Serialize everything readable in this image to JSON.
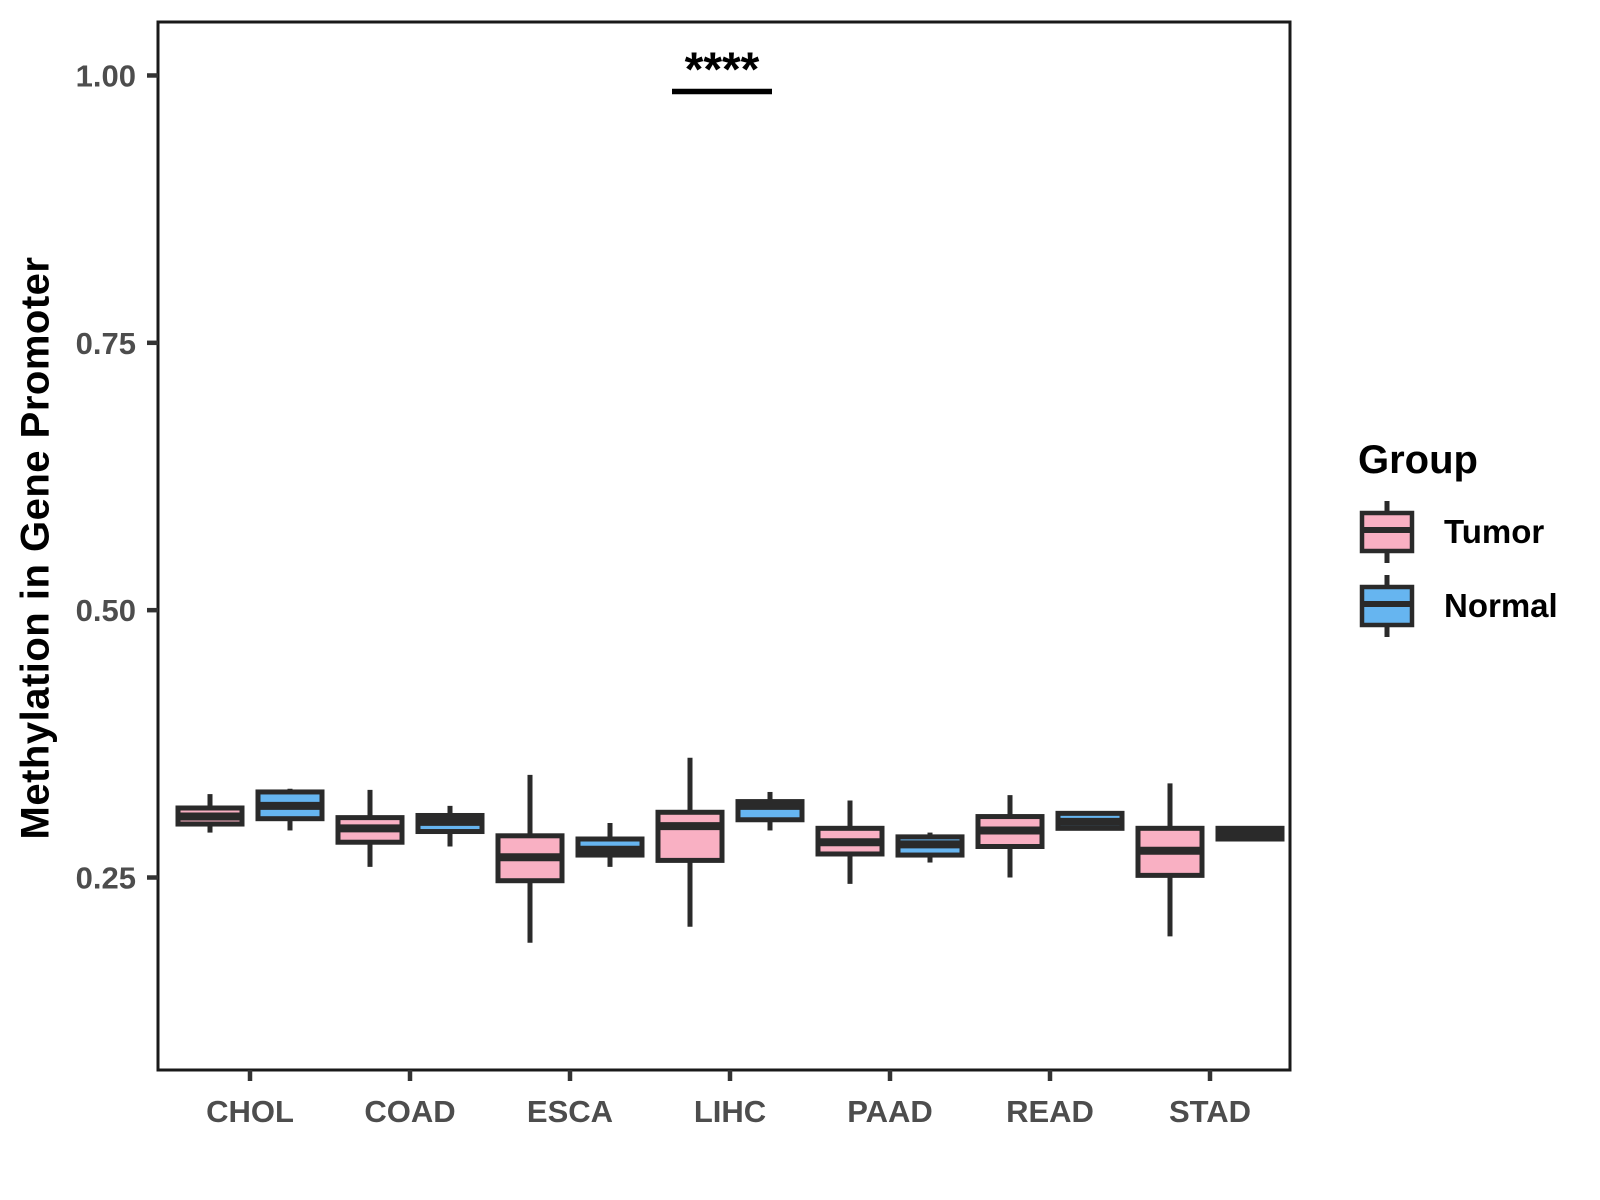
{
  "figure": {
    "ylabel": "Methylation in Gene Promoter"
  },
  "legend": {
    "title": "Group",
    "items": [
      {
        "label": "Tumor",
        "color": "#F9B0C3"
      },
      {
        "label": "Normal",
        "color": "#66B5F0"
      }
    ]
  },
  "colors": {
    "tumor_fill": "#F9B0C3",
    "normal_fill": "#66B5F0",
    "box_border": "#2A2A2A",
    "panel_border": "#1A1A1A",
    "tick": "#333333",
    "tick_label": "#4D4D4D",
    "category_label": "#4D4D4D",
    "annotation": "#000000"
  },
  "chart_data": {
    "type": "boxplot",
    "title": "",
    "xlabel": "",
    "ylabel": "Methylation in Gene Promoter",
    "grid": false,
    "legend_position": "right",
    "ylim": [
      0.07,
      1.05
    ],
    "y_ticks": [
      {
        "value": 0.25,
        "label": "0.25"
      },
      {
        "value": 0.5,
        "label": "0.50"
      },
      {
        "value": 0.75,
        "label": "0.75"
      },
      {
        "value": 1.0,
        "label": "1.00"
      }
    ],
    "categories": [
      "CHOL",
      "COAD",
      "ESCA",
      "LIHC",
      "PAAD",
      "READ",
      "STAD"
    ],
    "series": [
      {
        "name": "Tumor",
        "color": "#F9B0C3",
        "data": [
          {
            "category": "CHOL",
            "whisker_low": 0.292,
            "q1": 0.3,
            "median": 0.307,
            "q3": 0.315,
            "whisker_high": 0.328
          },
          {
            "category": "COAD",
            "whisker_low": 0.26,
            "q1": 0.283,
            "median": 0.296,
            "q3": 0.306,
            "whisker_high": 0.332
          },
          {
            "category": "ESCA",
            "whisker_low": 0.189,
            "q1": 0.247,
            "median": 0.269,
            "q3": 0.289,
            "whisker_high": 0.346
          },
          {
            "category": "LIHC",
            "whisker_low": 0.204,
            "q1": 0.266,
            "median": 0.298,
            "q3": 0.311,
            "whisker_high": 0.362
          },
          {
            "category": "PAAD",
            "whisker_low": 0.244,
            "q1": 0.272,
            "median": 0.283,
            "q3": 0.296,
            "whisker_high": 0.322
          },
          {
            "category": "READ",
            "whisker_low": 0.25,
            "q1": 0.279,
            "median": 0.294,
            "q3": 0.307,
            "whisker_high": 0.327
          },
          {
            "category": "STAD",
            "whisker_low": 0.195,
            "q1": 0.252,
            "median": 0.275,
            "q3": 0.296,
            "whisker_high": 0.338
          }
        ]
      },
      {
        "name": "Normal",
        "color": "#66B5F0",
        "data": [
          {
            "category": "CHOL",
            "whisker_low": 0.294,
            "q1": 0.305,
            "median": 0.317,
            "q3": 0.33,
            "whisker_high": 0.333
          },
          {
            "category": "COAD",
            "whisker_low": 0.279,
            "q1": 0.293,
            "median": 0.302,
            "q3": 0.308,
            "whisker_high": 0.317
          },
          {
            "category": "ESCA",
            "whisker_low": 0.26,
            "q1": 0.271,
            "median": 0.276,
            "q3": 0.286,
            "whisker_high": 0.301
          },
          {
            "category": "LIHC",
            "whisker_low": 0.294,
            "q1": 0.304,
            "median": 0.317,
            "q3": 0.321,
            "whisker_high": 0.33
          },
          {
            "category": "PAAD",
            "whisker_low": 0.264,
            "q1": 0.271,
            "median": 0.281,
            "q3": 0.288,
            "whisker_high": 0.292
          },
          {
            "category": "READ",
            "whisker_low": 0.294,
            "q1": 0.296,
            "median": 0.302,
            "q3": 0.31,
            "whisker_high": 0.311
          },
          {
            "category": "STAD",
            "whisker_low": 0.285,
            "q1": 0.286,
            "median": 0.291,
            "q3": 0.296,
            "whisker_high": 0.297
          }
        ]
      }
    ],
    "annotation": {
      "text": "****",
      "category": "LIHC",
      "compares": [
        "Tumor",
        "Normal"
      ],
      "bar_value": 0.985
    }
  }
}
